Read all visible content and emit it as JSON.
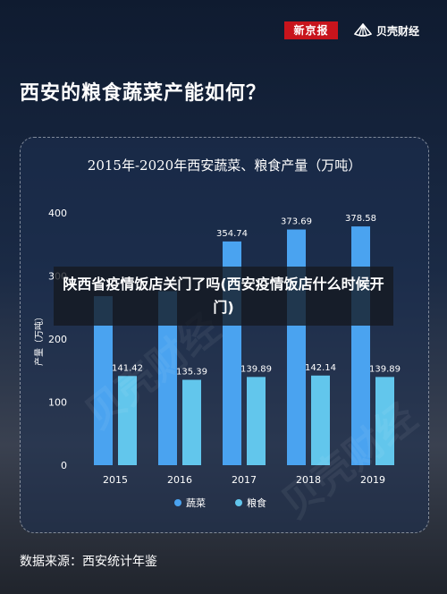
{
  "header": {
    "brand_newspaper": "新京报",
    "brand_finance": "贝壳财经"
  },
  "page_title": "西安的粮食蔬菜产能如何？",
  "overlay_text": "陕西省疫情饭店关门了吗(西安疫情饭店什么时候开门)",
  "source": "数据来源：西安统计年鉴",
  "watermark": "贝壳财经",
  "colors": {
    "vegetables": "#4aa3f0",
    "grain": "#62c6ec"
  },
  "chart_data": {
    "type": "bar",
    "title": "2015年-2020年西安蔬菜、粮食产量（万吨）",
    "ylabel": "产量（万吨）",
    "xlabel": "",
    "categories": [
      "2015",
      "2016",
      "2017",
      "2018",
      "2019"
    ],
    "ylim": [
      0,
      400
    ],
    "yticks": [
      0,
      100,
      200,
      300,
      400
    ],
    "legend_position": "bottom",
    "grid": false,
    "series": [
      {
        "name": "蔬菜",
        "values": [
          268,
          276,
          354.74,
          373.69,
          378.58
        ],
        "labels": [
          "",
          "",
          "354.74",
          "373.69",
          "378.58"
        ]
      },
      {
        "name": "粮食",
        "values": [
          141.42,
          135.39,
          139.89,
          142.14,
          139.89
        ],
        "labels": [
          "141.42",
          "135.39",
          "139.89",
          "142.14",
          "139.89"
        ]
      }
    ]
  }
}
